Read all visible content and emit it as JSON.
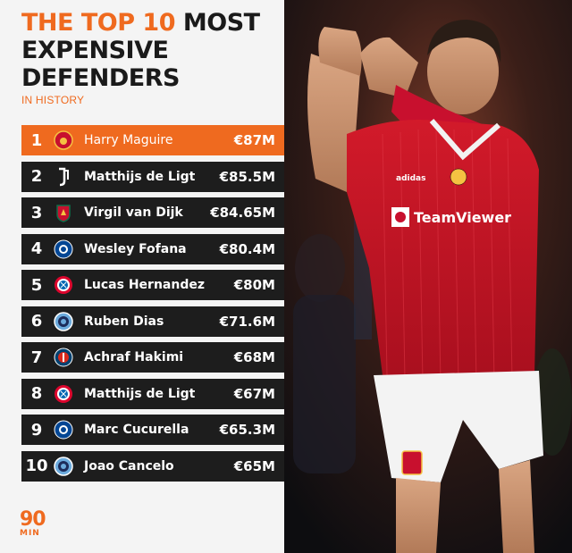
{
  "header": {
    "title_part1": "THE TOP 10",
    "title_part2": "MOST",
    "title_line2": "EXPENSIVE",
    "title_line3": "DEFENDERS",
    "subtitle": "IN HISTORY"
  },
  "rows": [
    {
      "rank": "1",
      "name": "Harry Maguire",
      "fee": "€87M",
      "crest": "man-utd-crest-icon"
    },
    {
      "rank": "2",
      "name": "Matthijs de Ligt",
      "fee": "€85.5M",
      "crest": "juventus-crest-icon"
    },
    {
      "rank": "3",
      "name": "Virgil van Dijk",
      "fee": "€84.65M",
      "crest": "liverpool-crest-icon"
    },
    {
      "rank": "4",
      "name": "Wesley Fofana",
      "fee": "€80.4M",
      "crest": "chelsea-crest-icon"
    },
    {
      "rank": "5",
      "name": "Lucas Hernandez",
      "fee": "€80M",
      "crest": "bayern-crest-icon"
    },
    {
      "rank": "6",
      "name": "Ruben Dias",
      "fee": "€71.6M",
      "crest": "man-city-crest-icon"
    },
    {
      "rank": "7",
      "name": "Achraf Hakimi",
      "fee": "€68M",
      "crest": "psg-crest-icon"
    },
    {
      "rank": "8",
      "name": "Matthijs de Ligt",
      "fee": "€67M",
      "crest": "bayern-crest-icon"
    },
    {
      "rank": "9",
      "name": "Marc Cucurella",
      "fee": "€65.3M",
      "crest": "chelsea-crest-icon"
    },
    {
      "rank": "10",
      "name": "Joao Cancelo",
      "fee": "€65M",
      "crest": "man-city-crest-icon"
    }
  ],
  "brand": {
    "logo_big": "90",
    "logo_small": "MIN"
  },
  "photo": {
    "sponsor": "TeamViewer",
    "kit_brand": "adidas"
  },
  "colors": {
    "accent": "#ef6a1f",
    "row_bg": "#1d1d1d",
    "panel_bg": "#f4f4f4",
    "kit_red": "#c8102e"
  }
}
